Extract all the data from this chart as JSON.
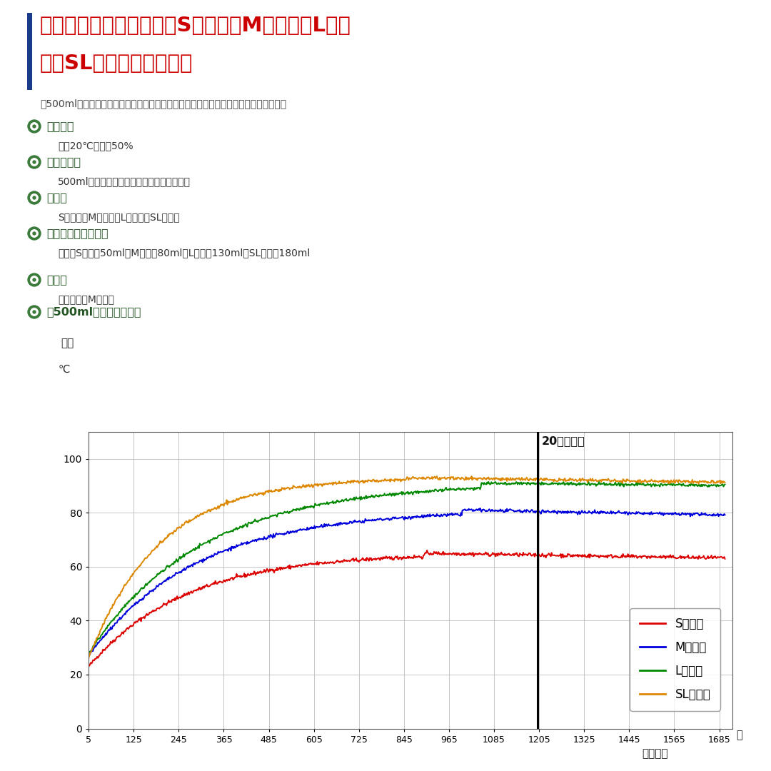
{
  "title_line1": "発熱性能一覧表　発熱劑Sサイズ、Mサイズ、Lサイ",
  "title_line2": "ズ、SLサイズ比較データ",
  "subtitle": "汀5 00mlを加熱専用のパウチ袋に入れ、発熱劑各サイズの加熱昇温データを計測した。",
  "subtitle2": "汀50 0mlを加熱専用のパウチ袋に入れ、発熱劑各サイズの加熱昇温データを計測した。",
  "sections": [
    {
      "label": "測定条件",
      "content": "気温20℃　湰50%"
    },
    {
      "label": "加熱対象物",
      "content": "500ml（容器：湯準しボックス用パウチ袋）"
    },
    {
      "label": "発熱劑",
      "content": "Sサイズ、Mサイズ、Lサイズ、SLサイズ"
    },
    {
      "label": "発熱劑への添加水量",
      "content": "発熱劑Sサイ゙偐50ml，Mサイ゙偐80ml，Lサイ゙偐130ml，SLサイ゙偐180ml"
    },
    {
      "label": "加熱袋",
      "content": "専用加熱袋Mサイズ"
    },
    {
      "label": "汀50 0ml加熱比較グラフ",
      "content": ""
    }
  ],
  "graph_ylabel": "温度",
  "graph_ylabel2": "℃",
  "graph_xlabel": "経過時間",
  "graph_xunit": "秒",
  "vline_label": "20分ライン",
  "vline_x": 1200,
  "x_ticks": [
    5,
    125,
    245,
    365,
    485,
    605,
    725,
    845,
    965,
    1085,
    1205,
    1325,
    1445,
    1565,
    1685
  ],
  "y_ticks": [
    0,
    20,
    40,
    60,
    80,
    100
  ],
  "ylim": [
    0,
    110
  ],
  "xlim": [
    5,
    1720
  ],
  "series_S_color": "#dd0000",
  "series_S_label": "Sサイズ",
  "series_M_color": "#0000dd",
  "series_M_label": "Mサイズ",
  "series_L_color": "#008800",
  "series_L_label": "Lサイズ",
  "series_SL_color": "#dd8800",
  "series_SL_label": "SLサイズ",
  "title_color": "#cc0000",
  "title_bar_color": "#1a3a8a",
  "section_icon_color": "#3a7a3a",
  "section_label_color": "#225522",
  "bg_color": "#ffffff",
  "grid_color": "#bbbbbb",
  "font_color": "#222222"
}
